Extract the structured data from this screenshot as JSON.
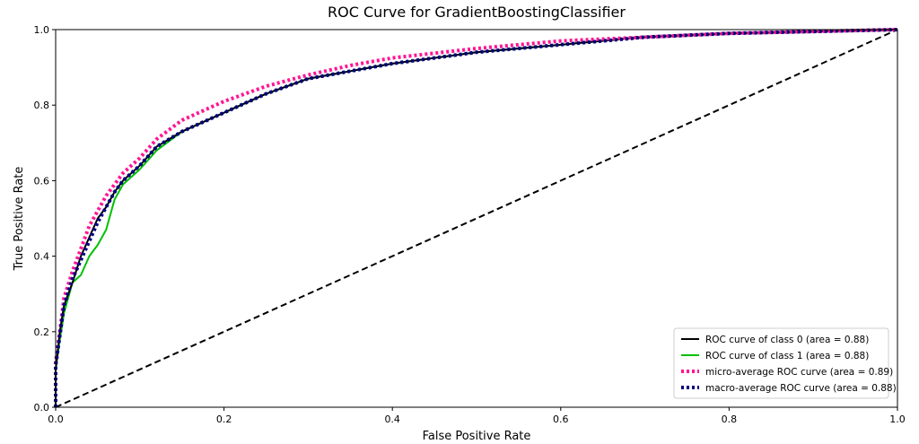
{
  "chart_data": {
    "type": "line",
    "title": "ROC Curve for GradientBoostingClassifier",
    "xlabel": "False Positive Rate",
    "ylabel": "True Positive Rate",
    "xlim": [
      0.0,
      1.0
    ],
    "ylim": [
      0.0,
      1.0
    ],
    "xticks": [
      "0.0",
      "0.2",
      "0.4",
      "0.6",
      "0.8",
      "1.0"
    ],
    "yticks": [
      "0.0",
      "0.2",
      "0.4",
      "0.6",
      "0.8",
      "1.0"
    ],
    "grid": false,
    "legend_position": "lower-right",
    "series": [
      {
        "name": "ROC curve of class 0 (area = 0.88)",
        "color": "#000000",
        "style": "solid",
        "x": [
          0.0,
          0.0,
          0.005,
          0.01,
          0.02,
          0.03,
          0.04,
          0.05,
          0.06,
          0.07,
          0.08,
          0.1,
          0.12,
          0.15,
          0.2,
          0.25,
          0.3,
          0.35,
          0.4,
          0.5,
          0.6,
          0.7,
          0.8,
          0.9,
          1.0
        ],
        "y": [
          0.0,
          0.1,
          0.2,
          0.27,
          0.33,
          0.4,
          0.45,
          0.5,
          0.53,
          0.57,
          0.6,
          0.64,
          0.69,
          0.73,
          0.78,
          0.83,
          0.87,
          0.89,
          0.91,
          0.94,
          0.96,
          0.98,
          0.99,
          0.995,
          1.0
        ]
      },
      {
        "name": "ROC curve of class 1 (area = 0.88)",
        "color": "#00c000",
        "style": "solid",
        "x": [
          0.0,
          0.0,
          0.005,
          0.01,
          0.015,
          0.02,
          0.03,
          0.04,
          0.05,
          0.06,
          0.07,
          0.08,
          0.1,
          0.12,
          0.15,
          0.2,
          0.25,
          0.3,
          0.35,
          0.4,
          0.5,
          0.6,
          0.7,
          0.8,
          0.9,
          1.0
        ],
        "y": [
          0.0,
          0.1,
          0.18,
          0.25,
          0.29,
          0.33,
          0.35,
          0.4,
          0.43,
          0.47,
          0.55,
          0.59,
          0.63,
          0.68,
          0.73,
          0.78,
          0.83,
          0.87,
          0.89,
          0.91,
          0.94,
          0.96,
          0.98,
          0.99,
          0.995,
          1.0
        ]
      },
      {
        "name": "micro-average ROC curve (area = 0.89)",
        "color": "#ff1493",
        "style": "dotted",
        "x": [
          0.0,
          0.0,
          0.005,
          0.01,
          0.02,
          0.03,
          0.04,
          0.05,
          0.06,
          0.07,
          0.08,
          0.1,
          0.12,
          0.15,
          0.2,
          0.25,
          0.3,
          0.35,
          0.4,
          0.5,
          0.6,
          0.7,
          0.8,
          0.9,
          1.0
        ],
        "y": [
          0.0,
          0.12,
          0.2,
          0.29,
          0.36,
          0.42,
          0.48,
          0.52,
          0.56,
          0.59,
          0.62,
          0.66,
          0.71,
          0.76,
          0.81,
          0.85,
          0.88,
          0.905,
          0.925,
          0.95,
          0.97,
          0.98,
          0.99,
          0.995,
          1.0
        ]
      },
      {
        "name": "macro-average ROC curve (area = 0.88)",
        "color": "#000080",
        "style": "dotted",
        "x": [
          0.0,
          0.0,
          0.005,
          0.01,
          0.02,
          0.03,
          0.04,
          0.05,
          0.06,
          0.07,
          0.08,
          0.1,
          0.12,
          0.15,
          0.2,
          0.25,
          0.3,
          0.35,
          0.4,
          0.5,
          0.6,
          0.7,
          0.8,
          0.9,
          1.0
        ],
        "y": [
          0.0,
          0.11,
          0.19,
          0.27,
          0.34,
          0.39,
          0.44,
          0.49,
          0.53,
          0.57,
          0.6,
          0.64,
          0.69,
          0.73,
          0.78,
          0.83,
          0.87,
          0.89,
          0.91,
          0.94,
          0.96,
          0.98,
          0.99,
          0.995,
          1.0
        ]
      },
      {
        "name": "",
        "color": "#000000",
        "style": "dashed",
        "x": [
          0.0,
          1.0
        ],
        "y": [
          0.0,
          1.0
        ]
      }
    ]
  }
}
